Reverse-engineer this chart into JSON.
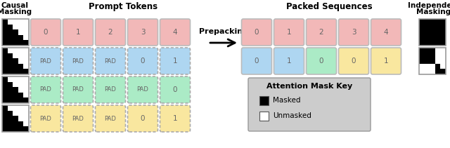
{
  "title_left1": "Causal",
  "title_left2": "Masking",
  "title_mid": "Prompt Tokens",
  "title_right": "Packed Sequences",
  "title_rightmost1": "Independent",
  "title_rightmost2": "Masking",
  "arrow_label": "Prepacking",
  "legend_title": "Attention Mask Key",
  "legend_masked": "Masked",
  "legend_unmasked": "Unmasked",
  "prompt_rows": [
    {
      "color": "#F2B8B8",
      "tokens": [
        "0",
        "1",
        "2",
        "3",
        "4"
      ],
      "dashed": false
    },
    {
      "color": "#AED6F1",
      "tokens": [
        "PAD",
        "PAD",
        "PAD",
        "0",
        "1"
      ],
      "dashed": true
    },
    {
      "color": "#ABEBC6",
      "tokens": [
        "PAD",
        "PAD",
        "PAD",
        "PAD",
        "0"
      ],
      "dashed": true
    },
    {
      "color": "#F9E79F",
      "tokens": [
        "PAD",
        "PAD",
        "PAD",
        "0",
        "1"
      ],
      "dashed": true
    }
  ],
  "packed_rows": [
    {
      "colors": [
        "#F2B8B8",
        "#F2B8B8",
        "#F2B8B8",
        "#F2B8B8",
        "#F2B8B8"
      ],
      "tokens": [
        "0",
        "1",
        "2",
        "3",
        "4"
      ]
    },
    {
      "colors": [
        "#AED6F1",
        "#AED6F1",
        "#ABEBC6",
        "#F9E79F",
        "#F9E79F"
      ],
      "tokens": [
        "0",
        "1",
        "0",
        "0",
        "1"
      ]
    }
  ],
  "causal_masks": [
    [
      [
        1,
        0,
        0,
        0,
        0
      ],
      [
        1,
        1,
        0,
        0,
        0
      ],
      [
        1,
        1,
        1,
        0,
        0
      ],
      [
        1,
        1,
        1,
        1,
        0
      ],
      [
        1,
        1,
        1,
        1,
        1
      ]
    ],
    [
      [
        1,
        0,
        0,
        0,
        0
      ],
      [
        1,
        1,
        0,
        0,
        0
      ],
      [
        1,
        1,
        1,
        0,
        0
      ],
      [
        1,
        1,
        1,
        1,
        0
      ],
      [
        1,
        1,
        1,
        1,
        1
      ]
    ],
    [
      [
        1,
        0,
        0,
        0,
        0
      ],
      [
        1,
        1,
        0,
        0,
        0
      ],
      [
        1,
        1,
        1,
        0,
        0
      ],
      [
        1,
        1,
        1,
        1,
        0
      ],
      [
        1,
        1,
        1,
        1,
        1
      ]
    ],
    [
      [
        1,
        0,
        0,
        0,
        0
      ],
      [
        1,
        1,
        0,
        0,
        0
      ],
      [
        1,
        1,
        1,
        0,
        0
      ],
      [
        1,
        1,
        1,
        1,
        0
      ],
      [
        1,
        1,
        1,
        1,
        1
      ]
    ]
  ],
  "indep_masks": [
    [
      [
        1,
        1,
        1,
        1,
        1
      ],
      [
        1,
        1,
        1,
        1,
        1
      ],
      [
        1,
        1,
        1,
        1,
        1
      ],
      [
        1,
        1,
        1,
        1,
        1
      ],
      [
        1,
        1,
        1,
        1,
        1
      ]
    ],
    [
      [
        1,
        1,
        1,
        0,
        0
      ],
      [
        1,
        1,
        1,
        0,
        0
      ],
      [
        1,
        1,
        1,
        0,
        0
      ],
      [
        0,
        0,
        0,
        1,
        0
      ],
      [
        0,
        0,
        0,
        1,
        1
      ]
    ]
  ],
  "bg_color": "#FFFFFF",
  "legend_bg": "#CCCCCC"
}
